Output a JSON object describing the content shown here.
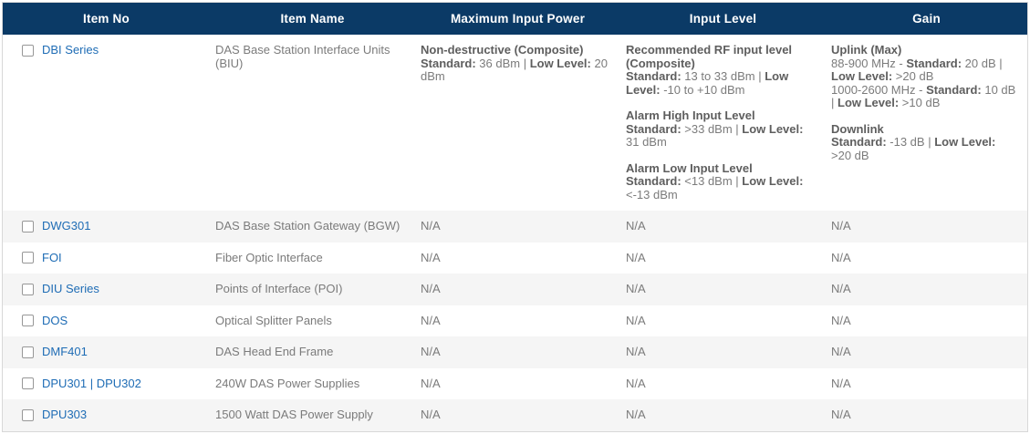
{
  "colors": {
    "header_bg": "#0b3a66",
    "link_blue": "#1e6cb5",
    "stripe_gray": "#f5f5f5"
  },
  "table": {
    "columns": [
      {
        "label": "Item No"
      },
      {
        "label": "Item Name"
      },
      {
        "label": "Maximum Input Power"
      },
      {
        "label": "Input Level"
      },
      {
        "label": "Gain"
      }
    ],
    "rows": [
      {
        "checked": false,
        "item_no": "DBI Series",
        "item_name": "DAS Base Station Interface Units (BIU)",
        "max_input_power": {
          "rich": [
            [
              [
                {
                  "t": "Non-destructive (Composite)",
                  "b": true
                }
              ],
              [
                {
                  "t": "Standard:",
                  "b": true
                },
                {
                  "t": " 36 dBm | ",
                  "b": false
                },
                {
                  "t": "Low Level:",
                  "b": true
                },
                {
                  "t": " 20 dBm",
                  "b": false
                }
              ]
            ]
          ]
        },
        "input_level": {
          "rich": [
            [
              [
                {
                  "t": "Recommended RF input level (Composite)",
                  "b": true
                }
              ],
              [
                {
                  "t": "Standard:",
                  "b": true
                },
                {
                  "t": " 13 to 33 dBm | ",
                  "b": false
                },
                {
                  "t": "Low Level:",
                  "b": true
                },
                {
                  "t": " -10 to +10 dBm",
                  "b": false
                }
              ]
            ],
            [
              [
                {
                  "t": "Alarm High Input Level",
                  "b": true
                }
              ],
              [
                {
                  "t": "Standard:",
                  "b": true
                },
                {
                  "t": " >33 dBm | ",
                  "b": false
                },
                {
                  "t": "Low Level:",
                  "b": true
                },
                {
                  "t": " 31 dBm",
                  "b": false
                }
              ]
            ],
            [
              [
                {
                  "t": "Alarm Low Input Level",
                  "b": true
                }
              ],
              [
                {
                  "t": "Standard:",
                  "b": true
                },
                {
                  "t": " <13 dBm | ",
                  "b": false
                },
                {
                  "t": "Low Level:",
                  "b": true
                },
                {
                  "t": " <-13 dBm",
                  "b": false
                }
              ]
            ]
          ]
        },
        "gain": {
          "rich": [
            [
              [
                {
                  "t": "Uplink (Max)",
                  "b": true
                }
              ],
              [
                {
                  "t": "88-900 MHz - ",
                  "b": false
                },
                {
                  "t": "Standard:",
                  "b": true
                },
                {
                  "t": " 20 dB | ",
                  "b": false
                },
                {
                  "t": "Low Level:",
                  "b": true
                },
                {
                  "t": " >20 dB",
                  "b": false
                }
              ],
              [
                {
                  "t": "1000-2600 MHz - ",
                  "b": false
                },
                {
                  "t": "Standard:",
                  "b": true
                },
                {
                  "t": " 10 dB | ",
                  "b": false
                },
                {
                  "t": "Low Level:",
                  "b": true
                },
                {
                  "t": " >10 dB",
                  "b": false
                }
              ]
            ],
            [
              [
                {
                  "t": "Downlink",
                  "b": true
                }
              ],
              [
                {
                  "t": "Standard:",
                  "b": true
                },
                {
                  "t": " -13 dB | ",
                  "b": false
                },
                {
                  "t": "Low Level:",
                  "b": true
                },
                {
                  "t": " >20 dB",
                  "b": false
                }
              ]
            ]
          ]
        }
      },
      {
        "checked": false,
        "item_no": "DWG301",
        "item_name": "DAS Base Station Gateway (BGW)",
        "max_input_power": "N/A",
        "input_level": "N/A",
        "gain": "N/A"
      },
      {
        "checked": false,
        "item_no": "FOI",
        "item_name": "Fiber Optic Interface",
        "max_input_power": "N/A",
        "input_level": "N/A",
        "gain": "N/A"
      },
      {
        "checked": false,
        "item_no": "DIU Series",
        "item_name": "Points of Interface (POI)",
        "max_input_power": "N/A",
        "input_level": "N/A",
        "gain": "N/A"
      },
      {
        "checked": false,
        "item_no": "DOS",
        "item_name": "Optical Splitter Panels",
        "max_input_power": "N/A",
        "input_level": "N/A",
        "gain": "N/A"
      },
      {
        "checked": false,
        "item_no": "DMF401",
        "item_name": "DAS Head End Frame",
        "max_input_power": "N/A",
        "input_level": "N/A",
        "gain": "N/A"
      },
      {
        "checked": false,
        "item_no": "DPU301 | DPU302",
        "item_name": "240W DAS Power Supplies",
        "max_input_power": "N/A",
        "input_level": "N/A",
        "gain": "N/A"
      },
      {
        "checked": false,
        "item_no": "DPU303",
        "item_name": "1500 Watt DAS Power Supply",
        "max_input_power": "N/A",
        "input_level": "N/A",
        "gain": "N/A"
      }
    ]
  }
}
